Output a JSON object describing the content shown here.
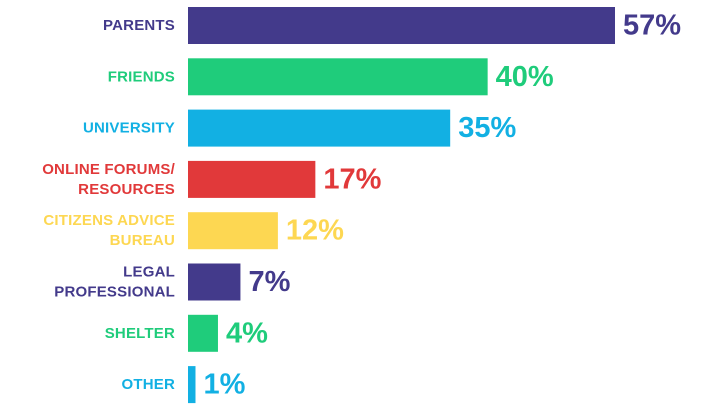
{
  "chart_data": {
    "type": "bar",
    "orientation": "horizontal",
    "categories": [
      [
        "PARENTS"
      ],
      [
        "FRIENDS"
      ],
      [
        "UNIVERSITY"
      ],
      [
        "ONLINE FORUMS/",
        "RESOURCES"
      ],
      [
        "CITIZENS ADVICE",
        "BUREAU"
      ],
      [
        "LEGAL",
        "PROFESSIONAL"
      ],
      [
        "SHELTER"
      ],
      [
        "OTHER"
      ]
    ],
    "values": [
      57,
      40,
      35,
      17,
      12,
      7,
      4,
      1
    ],
    "value_labels": [
      "57%",
      "40%",
      "35%",
      "17%",
      "12%",
      "7%",
      "4%",
      "1%"
    ],
    "colors": [
      "#433a8b",
      "#1fcc7b",
      "#12b0e3",
      "#e1393a",
      "#fdd752",
      "#433a8b",
      "#1fcc7b",
      "#12b0e3"
    ],
    "unit": "%",
    "xlim": [
      0,
      57
    ],
    "grid": false,
    "legend": "none"
  }
}
